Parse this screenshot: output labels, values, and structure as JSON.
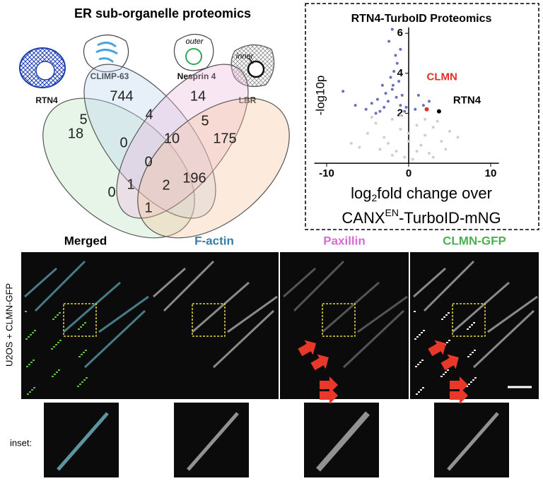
{
  "venn": {
    "title": "ER sub-organelle proteomics",
    "sets": [
      "RTN4",
      "CLIMP-63",
      "Nesprin 4",
      "LBR"
    ],
    "icon_labels": [
      "outer",
      "inner"
    ],
    "counts": [
      "744",
      "14",
      "5",
      "18",
      "4",
      "5",
      "175",
      "0",
      "10",
      "0",
      "196",
      "0",
      "1",
      "2",
      "1"
    ]
  },
  "chart_data": {
    "type": "scatter",
    "title": "RTN4-TurboID Proteomics",
    "y_label": "-log10p",
    "x_label": [
      [
        "log",
        "2",
        "fold change over"
      ],
      [
        "CANX",
        "EN",
        "-TurboID-mNG"
      ]
    ],
    "xlim": [
      -11.5,
      11
    ],
    "ylim": [
      -0.5,
      6.3
    ],
    "xticks": [
      -10,
      0,
      10
    ],
    "yticks": [
      2,
      4,
      6
    ],
    "series": [
      {
        "color": "#6b6fc0",
        "x": [
          -0.5,
          -1,
          -1.5,
          -2,
          -2.5,
          -3,
          -3.5,
          -4,
          -1.2,
          -1.8,
          -2.2,
          -2.8,
          -0.8,
          -1.4,
          -3.2,
          -4.5,
          -5.2,
          -6.5,
          -8,
          -2,
          -1,
          -0.3,
          -1.6,
          -2.4,
          -3.8,
          1.2,
          1.8,
          2.5,
          0.8,
          -1.9
        ],
        "values": [
          2.1,
          2.4,
          2.8,
          3.2,
          2.6,
          2.3,
          2.1,
          2.0,
          3.6,
          4.1,
          3.8,
          3.0,
          2.9,
          4.5,
          3.4,
          2.5,
          2.2,
          2.4,
          3.1,
          6.2,
          5.2,
          2.3,
          4.9,
          5.6,
          2.7,
          2.9,
          2.4,
          2.6,
          2.2,
          3.4
        ]
      },
      {
        "color": "#cfcfcf",
        "x": [
          -7,
          -5,
          -4,
          -3,
          -2,
          -1,
          0,
          1,
          2,
          3,
          4,
          5,
          -6,
          -3.5,
          -2.5,
          -1.5,
          -0.5,
          0.5,
          1.5,
          2.5,
          3.5,
          -4.5,
          -2,
          0,
          2,
          4.5,
          6,
          -1,
          1,
          3
        ],
        "values": [
          0.5,
          1.0,
          1.5,
          0.8,
          1.7,
          1.2,
          1.0,
          1.4,
          0.9,
          1.3,
          0.6,
          1.1,
          0.3,
          0.2,
          0.5,
          0.1,
          -0.2,
          -0.3,
          0.4,
          0.0,
          1.6,
          1.8,
          -0.1,
          0.6,
          1.7,
          0.2,
          0.8,
          1.9,
          0.1,
          -0.2
        ]
      }
    ],
    "annotations": [
      {
        "text": "CLMN",
        "x": 2.2,
        "y": 2.2,
        "color": "#e0302a"
      },
      {
        "text": "RTN4",
        "x": 3.7,
        "y": 2.1,
        "color": "#000000"
      }
    ]
  },
  "microscopy": {
    "channels": [
      {
        "label": "Merged",
        "color": "#000000"
      },
      {
        "label": "F-actin",
        "color": "#3a7ca5"
      },
      {
        "label": "Paxillin",
        "color": "#d36fd0"
      },
      {
        "label": "CLMN-GFP",
        "color": "#4caf50"
      }
    ],
    "row_label": "U2OS + CLMN-GFP",
    "inset_label": "inset:"
  }
}
